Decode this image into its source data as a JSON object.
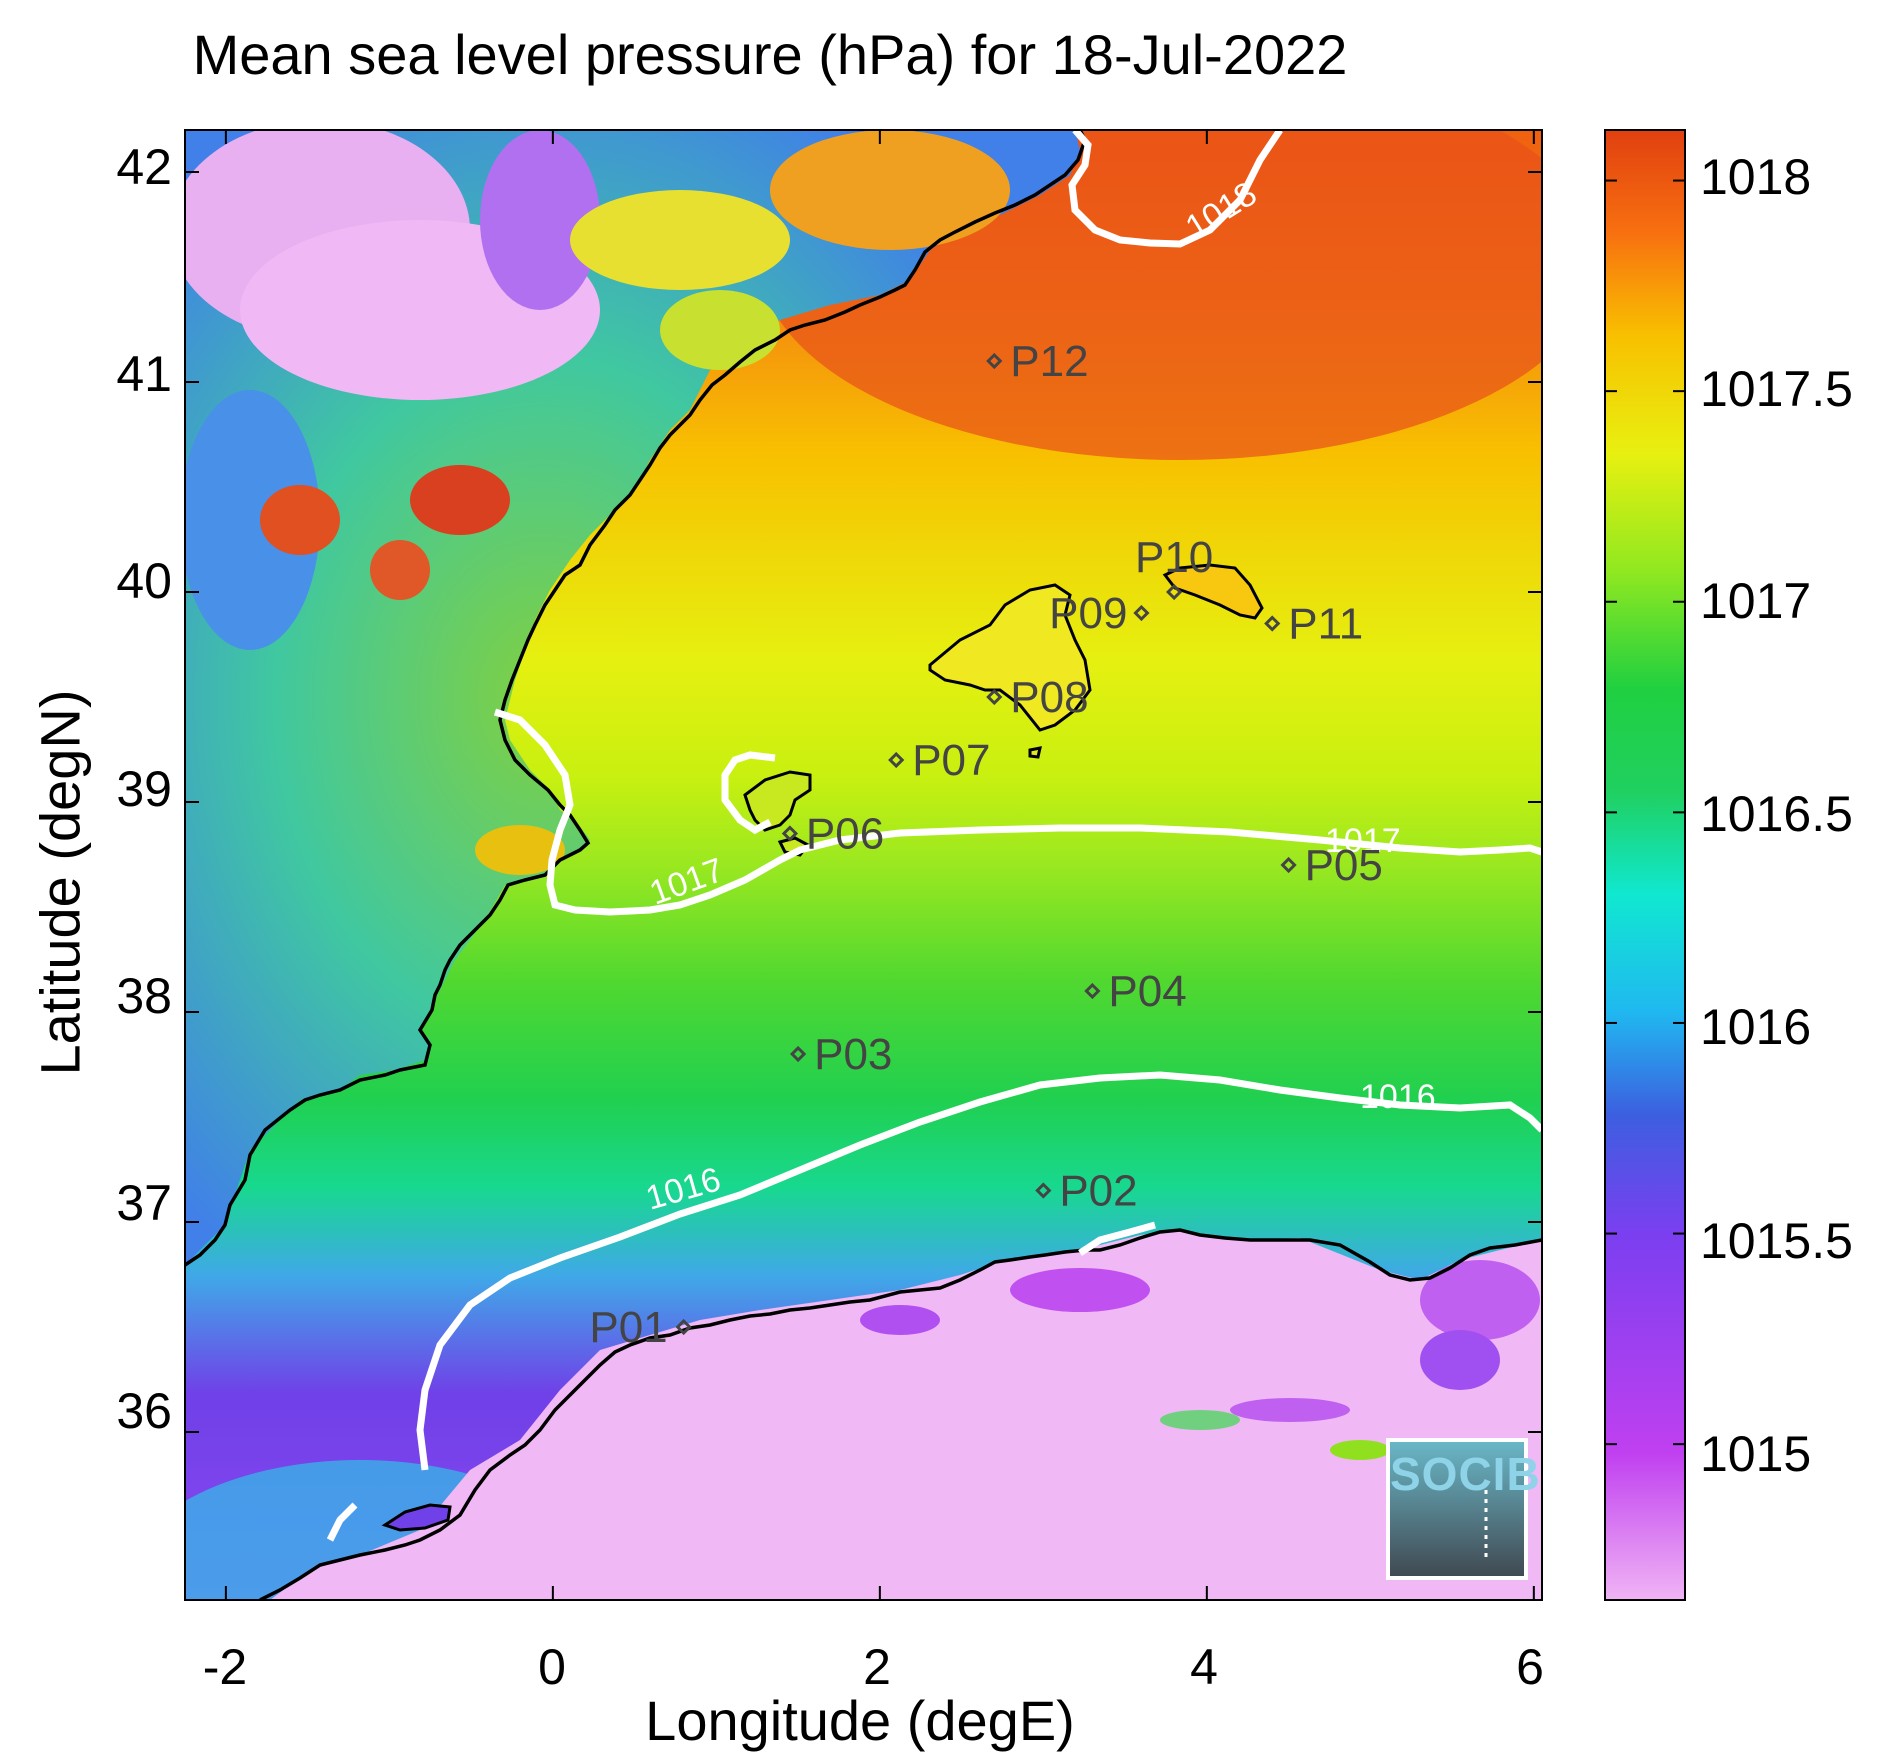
{
  "title": "Mean sea level pressure (hPa) for 18-Jul-2022",
  "axes": {
    "xlabel": "Longitude (degE)",
    "ylabel": "Latitude (degN)",
    "xticks": [
      "-2",
      "0",
      "2",
      "4",
      "6"
    ],
    "yticks": [
      "42",
      "41",
      "40",
      "39",
      "38",
      "37",
      "36"
    ]
  },
  "colorbar": {
    "ticks": [
      "1018",
      "1017.5",
      "1017",
      "1016.5",
      "1016",
      "1015.5",
      "1015"
    ],
    "range": [
      1014.63,
      1018.12
    ],
    "colors": [
      "#f0b4f4",
      "#c040f0",
      "#7a3ff0",
      "#3c5fe0",
      "#20b8f0",
      "#10e8d0",
      "#20d040",
      "#90e820",
      "#e8f010",
      "#f8c000",
      "#f87010",
      "#e04010"
    ]
  },
  "contour_labels": [
    "1018",
    "1017",
    "1017",
    "1016",
    "1016"
  ],
  "points": [
    {
      "label": "P01",
      "lon": 0.8,
      "lat": 36.5
    },
    {
      "label": "P02",
      "lon": 3.0,
      "lat": 37.15
    },
    {
      "label": "P03",
      "lon": 1.5,
      "lat": 37.8
    },
    {
      "label": "P04",
      "lon": 3.3,
      "lat": 38.1
    },
    {
      "label": "P05",
      "lon": 4.5,
      "lat": 38.7
    },
    {
      "label": "P06",
      "lon": 1.45,
      "lat": 38.85
    },
    {
      "label": "P07",
      "lon": 2.1,
      "lat": 39.2
    },
    {
      "label": "P08",
      "lon": 2.7,
      "lat": 39.5
    },
    {
      "label": "P09",
      "lon": 3.6,
      "lat": 39.9
    },
    {
      "label": "P10",
      "lon": 3.8,
      "lat": 40.0
    },
    {
      "label": "P11",
      "lon": 4.4,
      "lat": 39.85
    },
    {
      "label": "P12",
      "lon": 2.7,
      "lat": 41.1
    }
  ],
  "logo": {
    "text": "SOCIB"
  }
}
